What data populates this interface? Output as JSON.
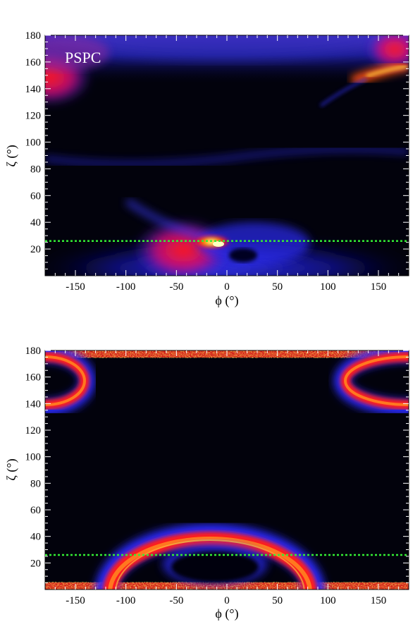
{
  "chart_data": [
    {
      "type": "heatmap",
      "panel_label": "PSPC",
      "xlabel": "ϕ (°)",
      "ylabel": "ζ (°)",
      "xlim": [
        -180,
        180
      ],
      "ylim": [
        0,
        180
      ],
      "x_ticks": [
        -150,
        -100,
        -50,
        0,
        50,
        100,
        150
      ],
      "y_ticks": [
        20,
        40,
        60,
        80,
        100,
        120,
        140,
        160,
        180
      ],
      "colormap": [
        "#000000",
        "#0a0a55",
        "#1a1acc",
        "#3a3aff",
        "#cc1a66",
        "#ff0000",
        "#ff8800",
        "#ffff00",
        "#ffffff"
      ],
      "reference_line": {
        "y": 26,
        "color": "#33ee33",
        "style": "dotted"
      },
      "features": [
        {
          "kind": "hotspot",
          "x": -8,
          "y": 25,
          "intensity": 1.0
        },
        {
          "kind": "hotspot",
          "x": 160,
          "y": 155,
          "intensity": 0.95
        },
        {
          "kind": "band",
          "from": [
            -180,
            150
          ],
          "to": [
            -110,
            175
          ],
          "intensity": 0.6
        },
        {
          "kind": "band",
          "from": [
            -80,
            25
          ],
          "to": [
            40,
            25
          ],
          "intensity": 0.7
        },
        {
          "kind": "arc",
          "from": [
            -180,
            88
          ],
          "to": [
            180,
            92
          ],
          "intensity": 0.35
        },
        {
          "kind": "dark_spot",
          "x": 15,
          "y": 15
        }
      ]
    },
    {
      "type": "heatmap",
      "panel_label": "",
      "xlabel": "ϕ (°)",
      "ylabel": "ζ (°)",
      "xlim": [
        -180,
        180
      ],
      "ylim": [
        0,
        180
      ],
      "x_ticks": [
        -150,
        -100,
        -50,
        0,
        50,
        100,
        150
      ],
      "y_ticks": [
        20,
        40,
        60,
        80,
        100,
        120,
        140,
        160,
        180
      ],
      "colormap": [
        "#000000",
        "#0a0a55",
        "#1a1acc",
        "#3a3aff",
        "#cc1a66",
        "#ff0000",
        "#ff8800",
        "#ffff00",
        "#ffffff"
      ],
      "reference_line": {
        "y": 26,
        "color": "#33ee33",
        "style": "dotted"
      },
      "features": [
        {
          "kind": "ring",
          "center_x": -15,
          "center_y": 0,
          "radius_x": 65,
          "radius_y": 38,
          "intensity": 0.85
        },
        {
          "kind": "ring",
          "center_x": -180,
          "center_y": 155,
          "radius_x": 30,
          "radius_y": 16,
          "intensity": 0.85
        },
        {
          "kind": "ring",
          "center_x": 180,
          "center_y": 155,
          "radius_x": 50,
          "radius_y": 16,
          "intensity": 0.85
        },
        {
          "kind": "noisy_edge",
          "y": 178
        },
        {
          "kind": "noisy_edge",
          "y": 2
        }
      ]
    }
  ]
}
